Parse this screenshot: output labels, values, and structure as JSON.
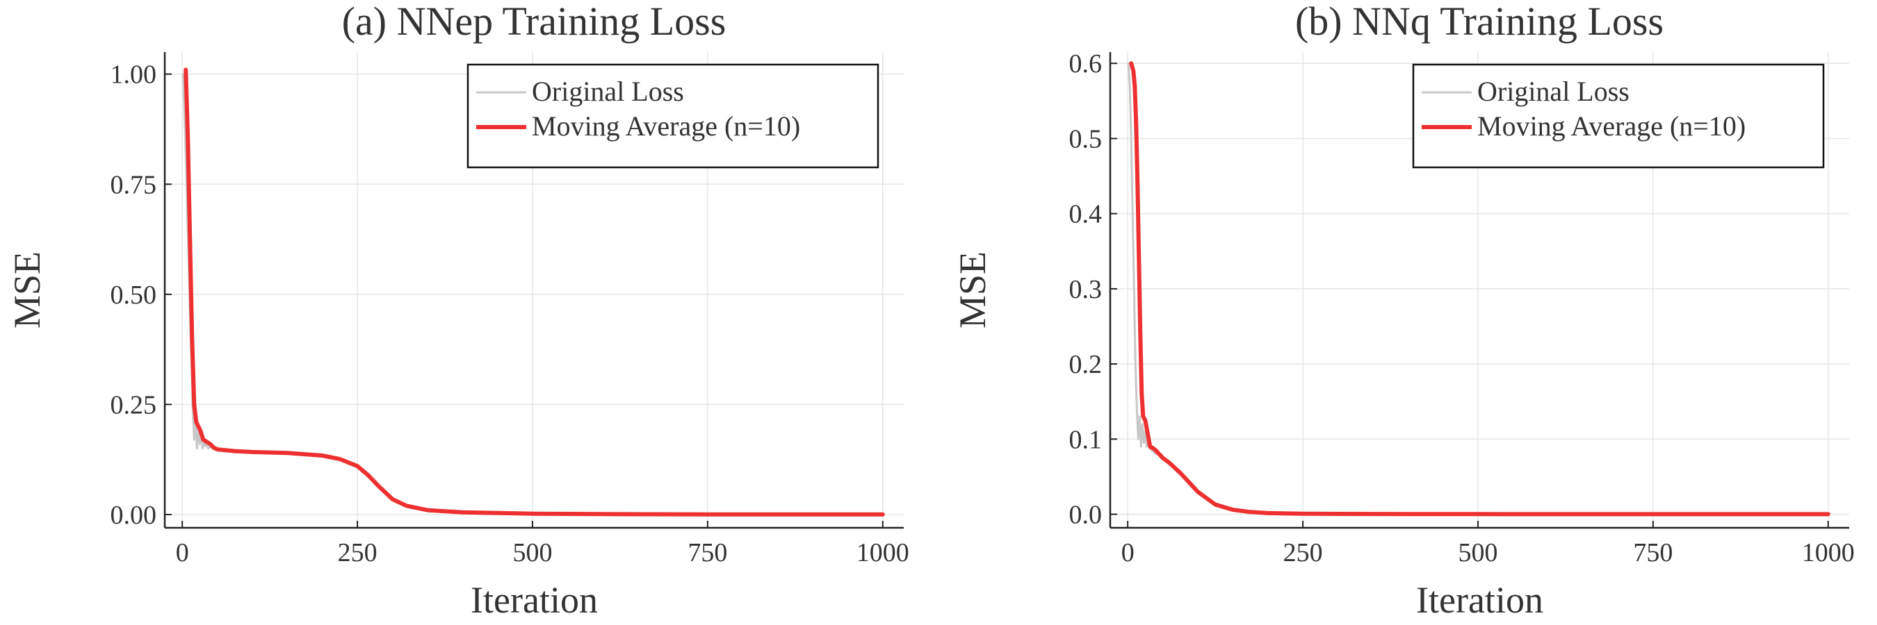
{
  "chart_data": [
    {
      "type": "line",
      "title": "(a) NNep Training Loss",
      "xlabel": "Iteration",
      "ylabel": "MSE",
      "xlim": [
        -25,
        1030
      ],
      "ylim": [
        -0.03,
        1.05
      ],
      "xticks": [
        0,
        250,
        500,
        750,
        1000
      ],
      "xtick_labels": [
        "0",
        "250",
        "500",
        "750",
        "1000"
      ],
      "yticks": [
        0.0,
        0.25,
        0.5,
        0.75,
        1.0
      ],
      "ytick_labels": [
        "0.00",
        "0.25",
        "0.50",
        "0.75",
        "1.00"
      ],
      "grid": true,
      "legend_position": "top-right",
      "series": [
        {
          "name": "Original Loss",
          "color": "#c8c8c8",
          "x": [
            1,
            3,
            5,
            7,
            9,
            11,
            13,
            15,
            17,
            19,
            21,
            23,
            25,
            27,
            29,
            31,
            33,
            35,
            37,
            40,
            45,
            50
          ],
          "y": [
            1.0,
            0.92,
            0.82,
            0.7,
            0.58,
            0.45,
            0.35,
            0.24,
            0.17,
            0.22,
            0.15,
            0.2,
            0.16,
            0.19,
            0.15,
            0.17,
            0.155,
            0.165,
            0.15,
            0.155,
            0.148,
            0.146
          ]
        },
        {
          "name": "Moving Average (n=10)",
          "color": "#ee3030",
          "x": [
            5,
            8,
            11,
            14,
            17,
            20,
            23,
            26,
            30,
            35,
            40,
            45,
            50,
            75,
            100,
            150,
            200,
            225,
            250,
            265,
            280,
            300,
            320,
            350,
            400,
            500,
            600,
            750,
            1000
          ],
          "y": [
            1.01,
            0.85,
            0.62,
            0.4,
            0.25,
            0.21,
            0.2,
            0.19,
            0.17,
            0.165,
            0.16,
            0.152,
            0.148,
            0.144,
            0.142,
            0.14,
            0.134,
            0.126,
            0.11,
            0.09,
            0.065,
            0.035,
            0.02,
            0.01,
            0.005,
            0.002,
            0.001,
            0.0005,
            0.0003
          ]
        }
      ]
    },
    {
      "type": "line",
      "title": "(b) NNq Training Loss",
      "xlabel": "Iteration",
      "ylabel": "MSE",
      "xlim": [
        -25,
        1030
      ],
      "ylim": [
        -0.018,
        0.615
      ],
      "xticks": [
        0,
        250,
        500,
        750,
        1000
      ],
      "xtick_labels": [
        "0",
        "250",
        "500",
        "750",
        "1000"
      ],
      "yticks": [
        0.0,
        0.1,
        0.2,
        0.3,
        0.4,
        0.5,
        0.6
      ],
      "ytick_labels": [
        "0.0",
        "0.1",
        "0.2",
        "0.3",
        "0.4",
        "0.5",
        "0.6"
      ],
      "grid": true,
      "legend_position": "top-right",
      "series": [
        {
          "name": "Original Loss",
          "color": "#c8c8c8",
          "x": [
            1,
            3,
            5,
            7,
            9,
            11,
            13,
            15,
            17,
            19,
            21,
            23,
            25,
            27,
            29,
            31,
            35,
            40
          ],
          "y": [
            0.6,
            0.57,
            0.5,
            0.4,
            0.3,
            0.2,
            0.14,
            0.1,
            0.13,
            0.09,
            0.12,
            0.095,
            0.11,
            0.09,
            0.1,
            0.088,
            0.085,
            0.08
          ]
        },
        {
          "name": "Moving Average (n=10)",
          "color": "#ee3030",
          "x": [
            5,
            8,
            10,
            12,
            14,
            16,
            18,
            20,
            22,
            25,
            28,
            32,
            36,
            40,
            50,
            60,
            75,
            90,
            100,
            125,
            150,
            175,
            200,
            250,
            300,
            400,
            500,
            750,
            1000
          ],
          "y": [
            0.6,
            0.59,
            0.57,
            0.52,
            0.44,
            0.34,
            0.24,
            0.16,
            0.13,
            0.125,
            0.11,
            0.09,
            0.088,
            0.085,
            0.075,
            0.068,
            0.055,
            0.04,
            0.03,
            0.013,
            0.006,
            0.003,
            0.0015,
            0.0008,
            0.0005,
            0.0003,
            0.0002,
            0.0001,
            0.0001
          ]
        }
      ]
    }
  ]
}
